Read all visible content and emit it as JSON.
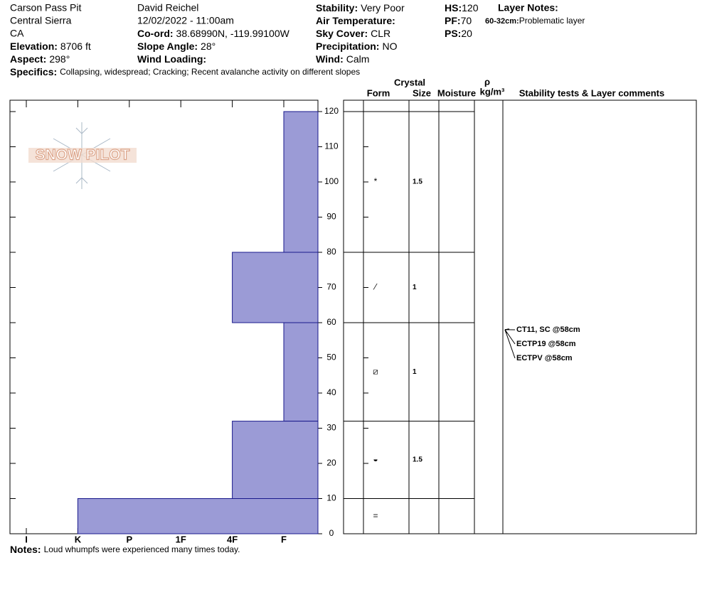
{
  "header": {
    "columns": [
      [
        "Carson Pass Pit",
        "Central Sierra",
        "CA",
        {
          "label": "Elevation:",
          "value": "8706 ft"
        },
        {
          "label": "Aspect:",
          "value": "298°"
        }
      ],
      [
        "David Reichel",
        "12/02/2022 - 11:00am",
        {
          "label": "Co-ord:",
          "value": "38.68990N, -119.99100W"
        },
        {
          "label": "Slope Angle:",
          "value": "28°"
        },
        {
          "label": "Wind Loading:"
        }
      ],
      [
        {
          "label": "Stability:",
          "value": "Very Poor"
        },
        {
          "label": "Air Temperature:"
        },
        {
          "label": "Sky Cover:",
          "value": "CLR"
        },
        {
          "label": "Precipitation:",
          "value": "NO"
        },
        {
          "label": "Wind:",
          "value": "Calm"
        }
      ],
      [
        {
          "label": "HS:",
          "value": "120"
        },
        {
          "label": "PF:",
          "value": "70"
        },
        {
          "label": "PS:",
          "value": "20"
        }
      ]
    ],
    "layer_notes": {
      "title": "Layer Notes:",
      "items": [
        {
          "label": "60-32cm:",
          "value": "Problematic layer"
        }
      ]
    },
    "specifics": {
      "label": "Specifics:",
      "value": "Collapsing, widespread; Cracking; Recent avalanche activity on different slopes"
    }
  },
  "logo": "SNOW PILOT",
  "chart_data": {
    "type": "hardness-profile",
    "x": [
      "I",
      "K",
      "P",
      "1F",
      "4F",
      "F"
    ],
    "ylim": [
      0,
      120
    ],
    "yticks": [
      0,
      10,
      20,
      30,
      40,
      50,
      60,
      70,
      80,
      90,
      100,
      110,
      120
    ],
    "color": "#9b9bd6",
    "edge_color": "#1a1a8c",
    "layers": [
      {
        "top": 120,
        "bottom": 80,
        "hardness": "F",
        "form": "*",
        "size": 1.5
      },
      {
        "top": 80,
        "bottom": 60,
        "hardness": "4F",
        "form": "⁄",
        "size": 1
      },
      {
        "top": 60,
        "bottom": 32,
        "hardness": "F",
        "form": "⧄",
        "size": 1
      },
      {
        "top": 32,
        "bottom": 10,
        "hardness": "4F",
        "form": "◒",
        "size": 1.5
      },
      {
        "top": 10,
        "bottom": 0,
        "hardness": "K",
        "form": "="
      }
    ],
    "columns": {
      "crystal": "Crystal",
      "form": "Form",
      "size": "Size",
      "moisture": "Moisture",
      "rho": "ρ",
      "density_unit": "kg/m³",
      "comments": "Stability tests & Layer comments"
    },
    "tests": [
      {
        "text": "CT11, SC @58cm",
        "depth": 58
      },
      {
        "text": "ECTP19 @58cm",
        "depth": 58
      },
      {
        "text": "ECTPV @58cm",
        "depth": 58
      }
    ]
  },
  "notes": {
    "label": "Notes:",
    "value": "Loud whumpfs were experienced many times today."
  }
}
